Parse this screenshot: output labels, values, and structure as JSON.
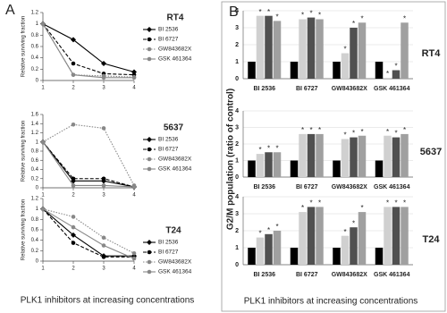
{
  "figure": {
    "panel_labels": [
      "A",
      "B"
    ],
    "x_label": "PLK1 inhibitors at increasing concentrations",
    "b_y_label": "G2/M population (ratio of control)"
  },
  "chart_data": [
    {
      "type": "line",
      "title": "RT4",
      "y_label": "Relative surviving fraction",
      "x": [
        1,
        2,
        3,
        4
      ],
      "xlim": [
        1,
        4
      ],
      "xticks": [
        1,
        2,
        3,
        4
      ],
      "ylim": [
        0,
        1.2
      ],
      "yticks": [
        0,
        0.2,
        0.4,
        0.6,
        0.8,
        1,
        1.2
      ],
      "series": [
        {
          "name": "BI 2536",
          "color": "#000000",
          "style": "solid",
          "marker": "diamond",
          "values": [
            1,
            0.72,
            0.3,
            0.15
          ]
        },
        {
          "name": "BI 6727",
          "color": "#000000",
          "style": "dashed",
          "marker": "circle",
          "values": [
            1,
            0.3,
            0.12,
            0.1
          ]
        },
        {
          "name": "GW843682X",
          "color": "#888888",
          "style": "dotted",
          "marker": "circle",
          "values": [
            1,
            0.1,
            0.08,
            0.06
          ]
        },
        {
          "name": "GSK 461364",
          "color": "#888888",
          "style": "solid",
          "marker": "circle",
          "values": [
            1,
            0.1,
            0.05,
            0.05
          ]
        }
      ]
    },
    {
      "type": "line",
      "title": "5637",
      "y_label": "Relative surviving fraction",
      "x": [
        1,
        2,
        3,
        4
      ],
      "xlim": [
        1,
        4
      ],
      "xticks": [
        1,
        2,
        3,
        4
      ],
      "ylim": [
        0,
        1.6
      ],
      "yticks": [
        0,
        0.2,
        0.4,
        0.6,
        0.8,
        1,
        1.2,
        1.4,
        1.6
      ],
      "series": [
        {
          "name": "BI 2536",
          "color": "#000000",
          "style": "solid",
          "marker": "diamond",
          "values": [
            1,
            0.15,
            0.15,
            0.02
          ]
        },
        {
          "name": "BI 6727",
          "color": "#000000",
          "style": "dashed",
          "marker": "circle",
          "values": [
            1,
            0.2,
            0.2,
            0.02
          ]
        },
        {
          "name": "GW843682X",
          "color": "#888888",
          "style": "dotted",
          "marker": "circle",
          "values": [
            1,
            1.38,
            1.3,
            0.05
          ]
        },
        {
          "name": "GSK 461364",
          "color": "#888888",
          "style": "solid",
          "marker": "circle",
          "values": [
            1,
            0.05,
            0.05,
            0.02
          ]
        }
      ]
    },
    {
      "type": "line",
      "title": "T24",
      "y_label": "Relative surviving fraction",
      "x": [
        1,
        2,
        3,
        4
      ],
      "xlim": [
        1,
        4
      ],
      "xticks": [
        1,
        2,
        3,
        4
      ],
      "ylim": [
        0,
        1.2
      ],
      "yticks": [
        0,
        0.2,
        0.4,
        0.6,
        0.8,
        1,
        1.2
      ],
      "series": [
        {
          "name": "BI 2536",
          "color": "#000000",
          "style": "solid",
          "marker": "diamond",
          "values": [
            1,
            0.5,
            0.1,
            0.1
          ]
        },
        {
          "name": "BI 6727",
          "color": "#000000",
          "style": "dashed",
          "marker": "circle",
          "values": [
            1,
            0.35,
            0.08,
            0.08
          ]
        },
        {
          "name": "GW843682X",
          "color": "#888888",
          "style": "dotted",
          "marker": "circle",
          "values": [
            1,
            0.85,
            0.45,
            0.15
          ]
        },
        {
          "name": "GSK 461364",
          "color": "#888888",
          "style": "solid",
          "marker": "circle",
          "values": [
            1,
            0.65,
            0.3,
            0.05
          ]
        }
      ]
    },
    {
      "type": "bar",
      "title": "RT4",
      "annotation": "*",
      "categories": [
        "BI 2536",
        "BI 6727",
        "GW843682X",
        "GSK 461364"
      ],
      "ylim": [
        0,
        4
      ],
      "yticks": [
        0,
        1,
        2,
        3,
        4
      ],
      "series": [
        {
          "color": "#000000",
          "values": [
            1,
            1,
            1,
            1
          ]
        },
        {
          "color": "#d0d0d0",
          "values": [
            3.7,
            3.5,
            1.5,
            0.05
          ]
        },
        {
          "color": "#505050",
          "values": [
            3.7,
            3.6,
            3.0,
            0.5
          ]
        },
        {
          "color": "#a0a0a0",
          "values": [
            3.4,
            3.5,
            3.3,
            3.3
          ]
        }
      ]
    },
    {
      "type": "bar",
      "title": "5637",
      "annotation": "*",
      "categories": [
        "BI 2536",
        "BI 6727",
        "GW843682X",
        "GSK 461364"
      ],
      "ylim": [
        0,
        4
      ],
      "yticks": [
        0,
        1,
        2,
        3,
        4
      ],
      "series": [
        {
          "color": "#000000",
          "values": [
            1,
            1,
            1,
            1
          ]
        },
        {
          "color": "#d0d0d0",
          "values": [
            1.4,
            2.6,
            2.3,
            2.5
          ]
        },
        {
          "color": "#505050",
          "values": [
            1.5,
            2.6,
            2.4,
            2.4
          ]
        },
        {
          "color": "#a0a0a0",
          "values": [
            1.5,
            2.6,
            2.5,
            2.6
          ]
        }
      ]
    },
    {
      "type": "bar",
      "title": "T24",
      "annotation": "*",
      "categories": [
        "BI 2536",
        "BI 6727",
        "GW843682X",
        "GSK 461364"
      ],
      "ylim": [
        0,
        4
      ],
      "yticks": [
        0,
        1,
        2,
        3,
        4
      ],
      "series": [
        {
          "color": "#000000",
          "values": [
            1,
            1,
            1,
            1
          ]
        },
        {
          "color": "#d0d0d0",
          "values": [
            1.6,
            3.1,
            1.7,
            3.4
          ]
        },
        {
          "color": "#505050",
          "values": [
            1.8,
            3.4,
            2.2,
            3.4
          ]
        },
        {
          "color": "#a0a0a0",
          "values": [
            2.0,
            3.4,
            3.1,
            3.4
          ]
        }
      ]
    }
  ]
}
